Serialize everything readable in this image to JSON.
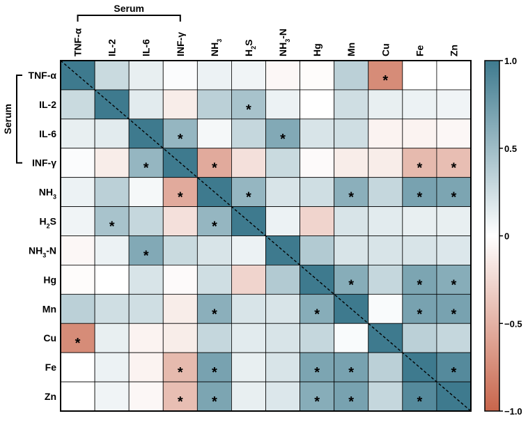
{
  "chart_data": {
    "type": "heatmap",
    "group_label": "Serum",
    "categories": [
      "TNF-α",
      "IL-2",
      "IL-6",
      "INF-γ",
      "NH3",
      "H2S",
      "NH3-N",
      "Hg",
      "Mn",
      "Cu",
      "Fe",
      "Zn"
    ],
    "category_labels": [
      {
        "main": "TNF-α",
        "sub": "",
        "tail": ""
      },
      {
        "main": "IL-2",
        "sub": "",
        "tail": ""
      },
      {
        "main": "IL-6",
        "sub": "",
        "tail": ""
      },
      {
        "main": "INF-γ",
        "sub": "",
        "tail": ""
      },
      {
        "main": "NH",
        "sub": "3",
        "tail": ""
      },
      {
        "main": "H",
        "sub": "2",
        "tail": "S"
      },
      {
        "main": "NH",
        "sub": "3",
        "tail": "-N"
      },
      {
        "main": "Hg",
        "sub": "",
        "tail": ""
      },
      {
        "main": "Mn",
        "sub": "",
        "tail": ""
      },
      {
        "main": "Cu",
        "sub": "",
        "tail": ""
      },
      {
        "main": "Fe",
        "sub": "",
        "tail": ""
      },
      {
        "main": "Zn",
        "sub": "",
        "tail": ""
      }
    ],
    "serum_group_indices": [
      0,
      3
    ],
    "values": [
      [
        1.0,
        0.28,
        0.12,
        0.02,
        0.1,
        0.08,
        -0.05,
        -0.02,
        0.35,
        -0.75,
        0.0,
        0.0
      ],
      [
        0.28,
        1.0,
        0.15,
        -0.12,
        0.35,
        0.45,
        0.1,
        0.0,
        0.25,
        0.12,
        0.1,
        0.08
      ],
      [
        0.12,
        0.15,
        1.0,
        0.55,
        0.05,
        0.3,
        0.65,
        0.2,
        0.25,
        -0.08,
        -0.08,
        -0.05
      ],
      [
        0.02,
        -0.12,
        0.55,
        1.0,
        -0.55,
        -0.2,
        0.28,
        -0.03,
        -0.12,
        -0.12,
        -0.45,
        -0.42
      ],
      [
        0.1,
        0.35,
        0.05,
        -0.55,
        1.0,
        0.55,
        0.2,
        0.25,
        0.6,
        0.3,
        0.7,
        0.68
      ],
      [
        0.08,
        0.45,
        0.3,
        -0.2,
        0.55,
        1.0,
        0.1,
        -0.28,
        0.2,
        0.15,
        0.12,
        0.12
      ],
      [
        -0.05,
        0.1,
        0.65,
        0.28,
        0.2,
        0.1,
        1.0,
        0.4,
        0.2,
        0.2,
        0.2,
        0.18
      ],
      [
        -0.02,
        0.0,
        0.2,
        -0.03,
        0.25,
        -0.28,
        0.4,
        1.0,
        0.62,
        0.3,
        0.68,
        0.62
      ],
      [
        0.35,
        0.25,
        0.25,
        -0.12,
        0.6,
        0.2,
        0.2,
        0.62,
        1.0,
        0.03,
        0.7,
        0.7
      ],
      [
        -0.75,
        0.12,
        -0.08,
        -0.12,
        0.3,
        0.15,
        0.2,
        0.3,
        0.03,
        1.0,
        0.35,
        0.3
      ],
      [
        0.0,
        0.1,
        -0.08,
        -0.45,
        0.7,
        0.12,
        0.2,
        0.68,
        0.7,
        0.35,
        1.0,
        0.88
      ],
      [
        0.0,
        0.08,
        -0.05,
        -0.42,
        0.68,
        0.12,
        0.18,
        0.62,
        0.7,
        0.3,
        0.88,
        1.0
      ]
    ],
    "significant": [
      [
        0,
        9
      ],
      [
        1,
        5
      ],
      [
        2,
        3
      ],
      [
        2,
        6
      ],
      [
        3,
        2
      ],
      [
        3,
        4
      ],
      [
        3,
        10
      ],
      [
        3,
        11
      ],
      [
        4,
        3
      ],
      [
        4,
        5
      ],
      [
        4,
        8
      ],
      [
        4,
        10
      ],
      [
        4,
        11
      ],
      [
        5,
        1
      ],
      [
        5,
        4
      ],
      [
        6,
        2
      ],
      [
        7,
        8
      ],
      [
        7,
        10
      ],
      [
        7,
        11
      ],
      [
        8,
        4
      ],
      [
        8,
        7
      ],
      [
        8,
        10
      ],
      [
        8,
        11
      ],
      [
        9,
        0
      ],
      [
        10,
        3
      ],
      [
        10,
        4
      ],
      [
        10,
        7
      ],
      [
        10,
        8
      ],
      [
        10,
        11
      ],
      [
        11,
        3
      ],
      [
        11,
        4
      ],
      [
        11,
        7
      ],
      [
        11,
        8
      ],
      [
        11,
        10
      ]
    ],
    "significance_marker": "*",
    "colorbar": {
      "range": [
        -1.0,
        1.0
      ],
      "ticks": [
        1.0,
        0.5,
        0,
        -0.5,
        -1.0
      ],
      "tick_labels": [
        "1.0",
        "0.5",
        "0",
        "−0.5",
        "−1.0"
      ],
      "color_min": "#c8654b",
      "color_mid": "#ffffff",
      "color_max": "#3e7a8e"
    },
    "diagonal_line": "dashed"
  }
}
